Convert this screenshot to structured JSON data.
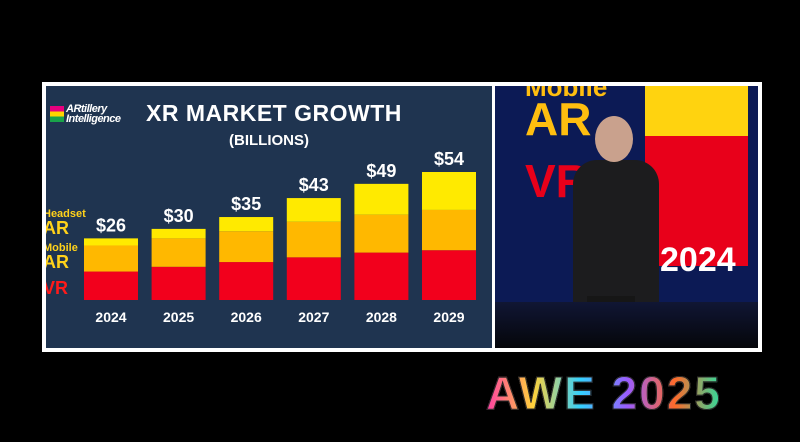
{
  "slide": {
    "logo_text_1": "ARtillery",
    "logo_text_2": "Intelligence",
    "title": "XR MARKET GROWTH",
    "subtitle": "(BILLIONS)"
  },
  "legend": {
    "headset_line1": "Headset",
    "headset_line2": "AR",
    "mobile_line1": "Mobile",
    "mobile_line2": "AR",
    "vr": "VR"
  },
  "stage": {
    "word_mobile": "Mobile",
    "word_ar": "AR",
    "word_vr": "VR",
    "year": "2024"
  },
  "event": {
    "logo": "AWE 2025"
  },
  "colors": {
    "headset_ar": "#ffea00",
    "mobile_ar": "#ffb800",
    "vr": "#f2001c",
    "slide_bg": "#1f3450"
  },
  "chart_data": {
    "type": "bar",
    "stacked": true,
    "title": "XR MARKET GROWTH",
    "subtitle": "(BILLIONS)",
    "categories": [
      "2024",
      "2025",
      "2026",
      "2027",
      "2028",
      "2029"
    ],
    "totals": [
      "$26",
      "$30",
      "$35",
      "$43",
      "$49",
      "$54"
    ],
    "series": [
      {
        "name": "VR",
        "values": [
          12,
          14,
          16,
          18,
          20,
          21
        ]
      },
      {
        "name": "Mobile AR",
        "values": [
          11,
          12,
          13,
          15,
          16,
          17
        ]
      },
      {
        "name": "Headset AR",
        "values": [
          3,
          4,
          6,
          10,
          13,
          16
        ]
      }
    ],
    "ylim": [
      0,
      54
    ]
  }
}
